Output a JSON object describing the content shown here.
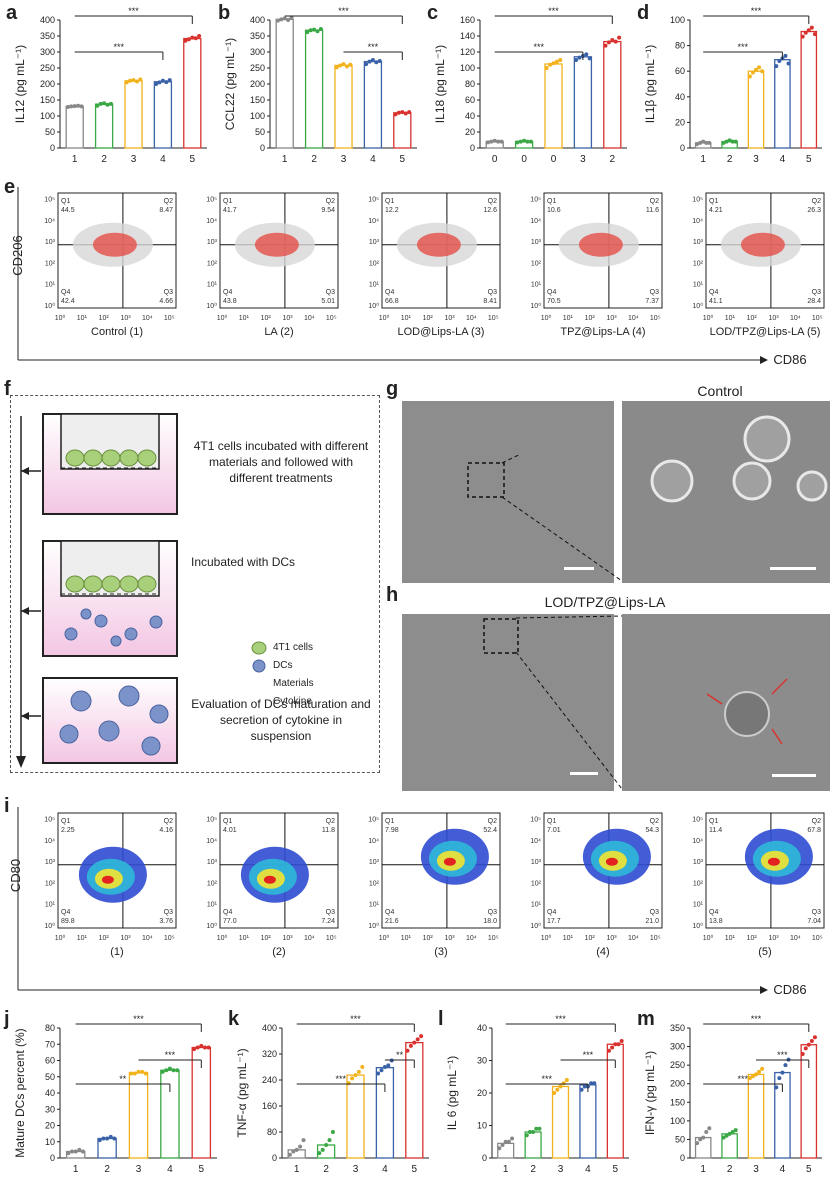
{
  "panel_letters": [
    "a",
    "b",
    "c",
    "d",
    "e",
    "f",
    "g",
    "h",
    "i",
    "j",
    "k",
    "l",
    "m"
  ],
  "chart_data": [
    {
      "panel": "a",
      "type": "bar",
      "ylabel": "IL12 (pg mL⁻¹)",
      "categories": [
        "1",
        "2",
        "3",
        "4",
        "5"
      ],
      "values": [
        130,
        137,
        210,
        207,
        342
      ],
      "points": [
        [
          128,
          130,
          131,
          132,
          130
        ],
        [
          132,
          138,
          140,
          135,
          138
        ],
        [
          205,
          210,
          212,
          208,
          214
        ],
        [
          200,
          205,
          210,
          206,
          212
        ],
        [
          335,
          340,
          345,
          343,
          350
        ]
      ],
      "colors": [
        "#888888",
        "#3aa845",
        "#f2b21b",
        "#3a62a8",
        "#d9322e"
      ],
      "ylim": [
        0,
        400
      ],
      "yticks": [
        0,
        50,
        100,
        150,
        200,
        250,
        300,
        350,
        400
      ],
      "significance": [
        {
          "from": 1,
          "to": 5,
          "label": "***"
        },
        {
          "from": 1,
          "to": 4,
          "label": "***",
          "group": [
            1,
            2
          ]
        }
      ]
    },
    {
      "panel": "b",
      "type": "bar",
      "ylabel": "CCL22 (pg mL⁻¹)",
      "categories": [
        "1",
        "2",
        "3",
        "4",
        "5"
      ],
      "values": [
        402,
        368,
        258,
        270,
        110
      ],
      "points": [
        [
          398,
          402,
          405,
          400,
          408
        ],
        [
          362,
          368,
          370,
          365,
          372
        ],
        [
          252,
          258,
          262,
          255,
          260
        ],
        [
          262,
          270,
          275,
          268,
          272
        ],
        [
          105,
          110,
          112,
          108,
          112
        ]
      ],
      "colors": [
        "#888888",
        "#3aa845",
        "#f2b21b",
        "#3a62a8",
        "#d9322e"
      ],
      "ylim": [
        0,
        400
      ],
      "yticks": [
        0,
        50,
        100,
        150,
        200,
        250,
        300,
        350,
        400
      ],
      "significance": [
        {
          "from": 1,
          "to": 5,
          "label": "***"
        },
        {
          "from": 3,
          "to": 5,
          "label": "***",
          "group": [
            3,
            4
          ]
        }
      ]
    },
    {
      "panel": "c",
      "type": "bar",
      "ylabel": "IL18 (pg mL⁻¹)",
      "categories": [
        "0",
        "0",
        "0",
        "3",
        "2"
      ],
      "values": [
        8,
        8,
        105,
        114,
        133
      ],
      "points": [
        [
          7,
          8,
          9,
          8,
          8
        ],
        [
          7,
          8,
          9,
          8,
          8
        ],
        [
          100,
          104,
          106,
          108,
          110
        ],
        [
          110,
          113,
          115,
          117,
          112
        ],
        [
          128,
          132,
          135,
          133,
          138
        ]
      ],
      "colors": [
        "#888888",
        "#3aa845",
        "#f2b21b",
        "#3a62a8",
        "#d9322e"
      ],
      "ylim": [
        0,
        160
      ],
      "yticks": [
        0,
        20,
        40,
        60,
        80,
        100,
        120,
        140,
        160
      ],
      "significance": [
        {
          "from": 1,
          "to": 5,
          "label": "***"
        },
        {
          "from": 1,
          "to": 4,
          "label": "***",
          "group": [
            1,
            2
          ]
        }
      ]
    },
    {
      "panel": "d",
      "type": "bar",
      "ylabel": "IL1β (pg mL⁻¹)",
      "categories": [
        "1",
        "2",
        "3",
        "4",
        "5"
      ],
      "values": [
        4,
        5,
        60,
        69,
        91
      ],
      "points": [
        [
          3,
          4,
          5,
          4,
          4
        ],
        [
          4,
          5,
          6,
          5,
          5
        ],
        [
          56,
          59,
          61,
          63,
          60
        ],
        [
          64,
          68,
          70,
          72,
          66
        ],
        [
          87,
          90,
          92,
          94,
          89
        ]
      ],
      "colors": [
        "#888888",
        "#3aa845",
        "#f2b21b",
        "#3a62a8",
        "#d9322e"
      ],
      "ylim": [
        0,
        100
      ],
      "yticks": [
        0,
        20,
        40,
        60,
        80,
        100
      ],
      "significance": [
        {
          "from": 1,
          "to": 5,
          "label": "***"
        },
        {
          "from": 1,
          "to": 4,
          "label": "***",
          "group": [
            1,
            2
          ]
        }
      ]
    },
    {
      "panel": "j",
      "type": "bar",
      "ylabel": "Mature DCs percent (%)",
      "categories": [
        "1",
        "2",
        "3",
        "4",
        "5"
      ],
      "values": [
        4,
        12,
        52.5,
        54,
        68
      ],
      "points": [
        [
          3,
          4,
          4,
          5,
          4
        ],
        [
          11,
          12,
          12,
          13,
          12
        ],
        [
          52,
          52,
          53,
          53,
          52
        ],
        [
          53,
          54,
          55,
          54,
          54
        ],
        [
          67,
          68,
          69,
          68,
          68
        ]
      ],
      "colors": [
        "#888888",
        "#3a62a8",
        "#f2b21b",
        "#3aa845",
        "#d9322e"
      ],
      "ylim": [
        0,
        80
      ],
      "yticks": [
        0,
        10,
        20,
        30,
        40,
        50,
        60,
        70,
        80
      ],
      "significance": [
        {
          "from": 1,
          "to": 5,
          "label": "***"
        },
        {
          "from": 3,
          "to": 5,
          "label": "***"
        },
        {
          "from": 1,
          "to": 4,
          "label": "**"
        }
      ]
    },
    {
      "panel": "k",
      "type": "bar",
      "ylabel": "TNF-α (pg mL⁻¹)",
      "categories": [
        "1",
        "2",
        "3",
        "4",
        "5"
      ],
      "values": [
        25,
        40,
        255,
        278,
        355
      ],
      "points": [
        [
          10,
          20,
          25,
          35,
          55
        ],
        [
          15,
          25,
          40,
          55,
          80
        ],
        [
          230,
          245,
          255,
          265,
          280
        ],
        [
          260,
          270,
          280,
          285,
          300
        ],
        [
          330,
          345,
          355,
          365,
          375
        ]
      ],
      "colors": [
        "#888888",
        "#3aa845",
        "#f2b21b",
        "#3a62a8",
        "#d9322e"
      ],
      "ylim": [
        0,
        400
      ],
      "yticks": [
        0,
        80,
        160,
        240,
        320,
        400
      ],
      "significance": [
        {
          "from": 1,
          "to": 5,
          "label": "***"
        },
        {
          "from": 4,
          "to": 5,
          "label": "**"
        },
        {
          "from": 1,
          "to": 4,
          "label": "***"
        }
      ]
    },
    {
      "panel": "l",
      "type": "bar",
      "ylabel": "IL 6 (pg mL⁻¹)",
      "categories": [
        "1",
        "2",
        "3",
        "4",
        "5"
      ],
      "values": [
        4.5,
        8,
        22,
        22.5,
        35
      ],
      "points": [
        [
          3,
          4,
          5,
          5,
          6
        ],
        [
          7,
          8,
          8,
          9,
          9
        ],
        [
          20,
          21,
          22,
          23,
          24
        ],
        [
          21,
          22,
          22,
          23,
          23
        ],
        [
          33,
          34,
          35,
          35,
          36
        ]
      ],
      "colors": [
        "#888888",
        "#3aa845",
        "#f2b21b",
        "#3a62a8",
        "#d9322e"
      ],
      "ylim": [
        0,
        40
      ],
      "yticks": [
        0,
        10,
        20,
        30,
        40
      ],
      "significance": [
        {
          "from": 1,
          "to": 5,
          "label": "***"
        },
        {
          "from": 3,
          "to": 5,
          "label": "***"
        },
        {
          "from": 1,
          "to": 4,
          "label": "***"
        }
      ]
    },
    {
      "panel": "m",
      "type": "bar",
      "ylabel": "IFN-γ (pg mL⁻¹)",
      "categories": [
        "1",
        "2",
        "3",
        "4",
        "5"
      ],
      "values": [
        55,
        65,
        225,
        230,
        305
      ],
      "points": [
        [
          40,
          50,
          55,
          70,
          80
        ],
        [
          55,
          60,
          65,
          70,
          75
        ],
        [
          215,
          220,
          225,
          232,
          240
        ],
        [
          190,
          215,
          230,
          250,
          265
        ],
        [
          280,
          295,
          305,
          315,
          325
        ]
      ],
      "colors": [
        "#888888",
        "#3aa845",
        "#f2b21b",
        "#3a62a8",
        "#d9322e"
      ],
      "ylim": [
        0,
        350
      ],
      "yticks": [
        0,
        50,
        100,
        150,
        200,
        250,
        300,
        350
      ],
      "significance": [
        {
          "from": 1,
          "to": 5,
          "label": "***"
        },
        {
          "from": 3,
          "to": 5,
          "label": "***"
        },
        {
          "from": 1,
          "to": 4,
          "label": "***"
        }
      ]
    },
    {
      "panel": "e",
      "type": "scatter",
      "ylabel": "CD206",
      "xlabel": "CD86",
      "axis_ticks": [
        "10⁰",
        "10¹",
        "10²",
        "10³",
        "10⁴",
        "10⁵"
      ],
      "plots": [
        {
          "label": "Control (1)",
          "q1": "44.5",
          "q2": "8.47",
          "q3": "4.66",
          "q4": "42.4"
        },
        {
          "label": "LA (2)",
          "q1": "41.7",
          "q2": "9.54",
          "q3": "5.01",
          "q4": "43.8"
        },
        {
          "label": "LOD@Lips-LA (3)",
          "q1": "12.2",
          "q2": "12.6",
          "q3": "8.41",
          "q4": "66.8"
        },
        {
          "label": "TPZ@Lips-LA (4)",
          "q1": "10.6",
          "q2": "11.6",
          "q3": "7.37",
          "q4": "70.5"
        },
        {
          "label": "LOD/TPZ@Lips-LA (5)",
          "q1": "4.21",
          "q2": "26.3",
          "q3": "28.4",
          "q4": "41.1"
        }
      ]
    },
    {
      "panel": "i",
      "type": "heatmap",
      "ylabel": "CD80",
      "xlabel": "CD86",
      "axis_ticks": [
        "10⁰",
        "10¹",
        "10²",
        "10³",
        "10⁴",
        "10⁵"
      ],
      "plots": [
        {
          "label": "(1)",
          "q1": "2.25",
          "q2": "4.16",
          "q3": "3.76",
          "q4": "89.8"
        },
        {
          "label": "(2)",
          "q1": "4.01",
          "q2": "11.8",
          "q3": "7.24",
          "q4": "77.0"
        },
        {
          "label": "(3)",
          "q1": "7.98",
          "q2": "52.4",
          "q3": "18.0",
          "q4": "21.6"
        },
        {
          "label": "(4)",
          "q1": "7.01",
          "q2": "54.3",
          "q3": "21.0",
          "q4": "17.7"
        },
        {
          "label": "(5)",
          "q1": "11.4",
          "q2": "67.8",
          "q3": "7.04",
          "q4": "13.8"
        }
      ]
    }
  ],
  "quadrant_labels": [
    "Q1",
    "Q2",
    "Q3",
    "Q4"
  ],
  "schematic": {
    "step1": "4T1 cells incubated with different materials and followed with different treatments",
    "step2": "Incubated with DCs",
    "step3": "Evaluation of DCs maturation and secretion of cytokine in suspension",
    "legend": [
      "4T1 cells",
      "DCs",
      "Materials",
      "Cytokine"
    ]
  },
  "micrographs": {
    "g_title": "Control",
    "h_title": "LOD/TPZ@Lips-LA"
  },
  "colors": {
    "gray": "#888888",
    "green": "#3aa845",
    "yellow": "#f2b21b",
    "blue": "#3a62a8",
    "red": "#d9322e"
  }
}
